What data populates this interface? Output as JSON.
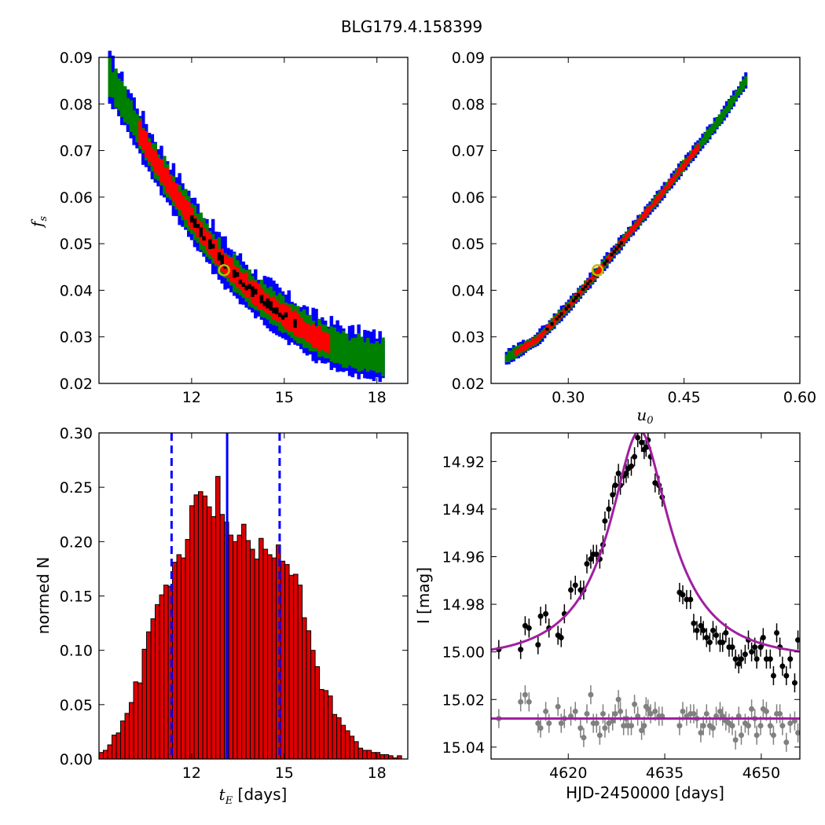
{
  "title": "BLG179.4.158399",
  "colors": {
    "blue": "#0000ff",
    "green": "#008000",
    "red": "#ff0000",
    "black": "#000000",
    "best_fit_marker": "#bfbf00",
    "histogram_bar": "#dd0000",
    "model_curve": "#a020a0",
    "baseline_points": "#808080"
  },
  "chart_data": [
    {
      "id": "panel-tE-fs",
      "type": "heatmap",
      "xlabel": "",
      "ylabel": "f_s",
      "xlim": [
        9,
        19
      ],
      "ylim": [
        0.02,
        0.09
      ],
      "xticks": [
        "12",
        "15",
        "18"
      ],
      "xtick_values": [
        12,
        15,
        18
      ],
      "yticks": [
        "0.02",
        "0.03",
        "0.04",
        "0.05",
        "0.06",
        "0.07",
        "0.08",
        "0.09"
      ],
      "ytick_values": [
        0.02,
        0.03,
        0.04,
        0.05,
        0.06,
        0.07,
        0.08,
        0.09
      ],
      "levels": [
        "blue",
        "green",
        "red",
        "black"
      ],
      "ridge": [
        [
          9.35,
          0.0855
        ],
        [
          10.0,
          0.078
        ],
        [
          10.7,
          0.069
        ],
        [
          11.5,
          0.0605
        ],
        [
          12.3,
          0.0525
        ],
        [
          13.1,
          0.0455
        ],
        [
          14.0,
          0.0395
        ],
        [
          15.0,
          0.0345
        ],
        [
          16.0,
          0.03
        ],
        [
          17.0,
          0.027
        ],
        [
          18.2,
          0.0255
        ]
      ],
      "widths": {
        "blue": 0.0048,
        "green": 0.0034,
        "red": 0.0022,
        "black": 0.0009
      },
      "red_range": [
        10.3,
        16.5
      ],
      "black_range": [
        12.0,
        15.5
      ],
      "best_fit": [
        13.05,
        0.0443
      ]
    },
    {
      "id": "panel-u0-fs",
      "type": "heatmap",
      "xlabel": "u_0",
      "ylabel": "",
      "xlim": [
        0.2,
        0.6
      ],
      "ylim": [
        0.02,
        0.09
      ],
      "xticks": [
        "0.30",
        "0.45",
        "0.60"
      ],
      "xtick_values": [
        0.3,
        0.45,
        0.6
      ],
      "yticks": [
        "0.02",
        "0.03",
        "0.04",
        "0.05",
        "0.06",
        "0.07",
        "0.08",
        "0.09"
      ],
      "ytick_values": [
        0.02,
        0.03,
        0.04,
        0.05,
        0.06,
        0.07,
        0.08,
        0.09
      ],
      "levels": [
        "blue",
        "green",
        "red",
        "black"
      ],
      "ridge": [
        [
          0.22,
          0.0255
        ],
        [
          0.26,
          0.0295
        ],
        [
          0.3,
          0.0365
        ],
        [
          0.34,
          0.0443
        ],
        [
          0.38,
          0.0525
        ],
        [
          0.42,
          0.0605
        ],
        [
          0.46,
          0.069
        ],
        [
          0.5,
          0.0775
        ],
        [
          0.53,
          0.085
        ]
      ],
      "widths": {
        "blue": 0.0014,
        "green": 0.001,
        "red": 0.0006,
        "black": 0.0003
      },
      "red_range": [
        0.23,
        0.47
      ],
      "black_range": [
        0.27,
        0.37
      ],
      "best_fit": [
        0.338,
        0.0443
      ]
    },
    {
      "id": "panel-histogram",
      "type": "bar",
      "xlabel_math": "t_E",
      "xlabel_unit": "[days]",
      "ylabel": "normed N",
      "xlim": [
        9,
        19
      ],
      "ylim": [
        0,
        0.3
      ],
      "bin_start": 9.0,
      "bin_width": 0.14,
      "xticks": [
        "12",
        "15",
        "18"
      ],
      "xtick_values": [
        12,
        15,
        18
      ],
      "yticks": [
        "0.00",
        "0.05",
        "0.10",
        "0.15",
        "0.20",
        "0.25",
        "0.30"
      ],
      "ytick_values": [
        0.0,
        0.05,
        0.1,
        0.15,
        0.2,
        0.25,
        0.3
      ],
      "values": [
        0.006,
        0.008,
        0.013,
        0.022,
        0.024,
        0.035,
        0.042,
        0.052,
        0.071,
        0.07,
        0.101,
        0.117,
        0.129,
        0.142,
        0.151,
        0.16,
        0.159,
        0.181,
        0.188,
        0.185,
        0.202,
        0.233,
        0.243,
        0.246,
        0.242,
        0.232,
        0.223,
        0.26,
        0.225,
        0.218,
        0.206,
        0.2,
        0.206,
        0.216,
        0.201,
        0.193,
        0.184,
        0.203,
        0.193,
        0.188,
        0.185,
        0.197,
        0.182,
        0.179,
        0.169,
        0.17,
        0.16,
        0.13,
        0.118,
        0.1,
        0.085,
        0.064,
        0.063,
        0.058,
        0.041,
        0.038,
        0.031,
        0.026,
        0.021,
        0.016,
        0.01,
        0.008,
        0.008,
        0.006,
        0.006,
        0.004,
        0.004,
        0.003,
        0.001,
        0.003
      ],
      "median": 13.15,
      "interval": [
        11.35,
        14.85
      ]
    },
    {
      "id": "panel-lightcurve",
      "type": "scatter",
      "xlabel": "HJD-2450000 [days]",
      "ylabel": "I [mag]",
      "xlim": [
        4608,
        4656
      ],
      "ylim": [
        15.045,
        14.908
      ],
      "xticks": [
        "4620",
        "4635",
        "4650"
      ],
      "xtick_values": [
        4620,
        4635,
        4650
      ],
      "yticks": [
        "14.92",
        "14.94",
        "14.96",
        "14.98",
        "15.00",
        "15.02",
        "15.04"
      ],
      "ytick_values": [
        14.92,
        14.94,
        14.96,
        14.98,
        15.0,
        15.02,
        15.04
      ],
      "model": {
        "type": "paczynski",
        "t0": 4631.1,
        "tE": 13.05,
        "u0": 0.338,
        "fs": 0.0443,
        "baseline": 15.003
      },
      "residual_baseline": 15.028,
      "points": [
        [
          4609.2,
          14.999,
          0.004
        ],
        [
          4612.6,
          14.999,
          0.004
        ],
        [
          4613.3,
          14.989,
          0.004
        ],
        [
          4613.9,
          14.99,
          0.004
        ],
        [
          4615.3,
          14.997,
          0.004
        ],
        [
          4615.7,
          14.985,
          0.004
        ],
        [
          4616.5,
          14.984,
          0.004
        ],
        [
          4617.0,
          14.99,
          0.004
        ],
        [
          4618.4,
          14.993,
          0.004
        ],
        [
          4618.9,
          14.994,
          0.004
        ],
        [
          4619.4,
          14.984,
          0.004
        ],
        [
          4620.4,
          14.974,
          0.004
        ],
        [
          4621.1,
          14.972,
          0.004
        ],
        [
          4621.9,
          14.974,
          0.004
        ],
        [
          4622.4,
          14.974,
          0.004
        ],
        [
          4622.9,
          14.963,
          0.004
        ],
        [
          4623.5,
          14.961,
          0.004
        ],
        [
          4623.9,
          14.959,
          0.004
        ],
        [
          4624.4,
          14.959,
          0.004
        ],
        [
          4624.9,
          14.961,
          0.004
        ],
        [
          4625.4,
          14.955,
          0.004
        ],
        [
          4625.7,
          14.945,
          0.004
        ],
        [
          4626.3,
          14.94,
          0.004
        ],
        [
          4626.9,
          14.934,
          0.004
        ],
        [
          4627.3,
          14.93,
          0.004
        ],
        [
          4627.8,
          14.925,
          0.004
        ],
        [
          4628.1,
          14.93,
          0.004
        ],
        [
          4628.6,
          14.926,
          0.004
        ],
        [
          4629.0,
          14.925,
          0.004
        ],
        [
          4629.3,
          14.923,
          0.004
        ],
        [
          4629.8,
          14.922,
          0.004
        ],
        [
          4630.3,
          14.918,
          0.004
        ],
        [
          4630.8,
          14.91,
          0.004
        ],
        [
          4631.4,
          14.912,
          0.004
        ],
        [
          4631.8,
          14.915,
          0.004
        ],
        [
          4632.1,
          14.914,
          0.004
        ],
        [
          4632.4,
          14.911,
          0.004
        ],
        [
          4632.8,
          14.918,
          0.004
        ],
        [
          4633.5,
          14.929,
          0.004
        ],
        [
          4634.1,
          14.93,
          0.004
        ],
        [
          4634.6,
          14.935,
          0.004
        ],
        [
          4637.3,
          14.975,
          0.004
        ],
        [
          4637.8,
          14.976,
          0.004
        ],
        [
          4638.4,
          14.978,
          0.004
        ],
        [
          4639.0,
          14.978,
          0.004
        ],
        [
          4639.5,
          14.988,
          0.004
        ],
        [
          4640.0,
          14.991,
          0.004
        ],
        [
          4640.6,
          14.989,
          0.004
        ],
        [
          4641.0,
          14.991,
          0.004
        ],
        [
          4641.5,
          14.994,
          0.004
        ],
        [
          4642.0,
          14.996,
          0.004
        ],
        [
          4642.5,
          14.991,
          0.004
        ],
        [
          4643.0,
          14.993,
          0.004
        ],
        [
          4643.6,
          14.996,
          0.004
        ],
        [
          4644.0,
          14.996,
          0.004
        ],
        [
          4644.5,
          14.992,
          0.004
        ],
        [
          4645.0,
          14.998,
          0.004
        ],
        [
          4645.5,
          14.998,
          0.004
        ],
        [
          4646.0,
          15.003,
          0.004
        ],
        [
          4646.5,
          15.005,
          0.004
        ],
        [
          4646.9,
          15.003,
          0.004
        ],
        [
          4647.5,
          15.001,
          0.004
        ],
        [
          4648.0,
          14.995,
          0.004
        ],
        [
          4648.5,
          15.0,
          0.004
        ],
        [
          4649.0,
          14.998,
          0.004
        ],
        [
          4649.3,
          15.003,
          0.004
        ],
        [
          4649.9,
          14.998,
          0.004
        ],
        [
          4650.3,
          14.994,
          0.004
        ],
        [
          4650.8,
          15.003,
          0.004
        ],
        [
          4651.4,
          15.003,
          0.004
        ],
        [
          4651.9,
          15.01,
          0.004
        ],
        [
          4652.4,
          14.992,
          0.004
        ],
        [
          4652.9,
          14.998,
          0.004
        ],
        [
          4653.3,
          15.006,
          0.004
        ],
        [
          4653.9,
          15.01,
          0.004
        ],
        [
          4654.5,
          15.003,
          0.004
        ],
        [
          4655.2,
          15.013,
          0.004
        ],
        [
          4655.7,
          14.995,
          0.004
        ]
      ],
      "residual_points": [
        [
          4609.2,
          15.028,
          0.004
        ],
        [
          4612.6,
          15.021,
          0.004
        ],
        [
          4613.3,
          15.018,
          0.004
        ],
        [
          4613.9,
          15.021,
          0.004
        ],
        [
          4615.3,
          15.03,
          0.004
        ],
        [
          4615.7,
          15.032,
          0.004
        ],
        [
          4616.5,
          15.025,
          0.004
        ],
        [
          4617.0,
          15.03,
          0.004
        ],
        [
          4618.4,
          15.023,
          0.004
        ],
        [
          4618.9,
          15.03,
          0.004
        ],
        [
          4619.4,
          15.028,
          0.004
        ],
        [
          4620.4,
          15.027,
          0.004
        ],
        [
          4621.1,
          15.025,
          0.004
        ],
        [
          4621.9,
          15.032,
          0.004
        ],
        [
          4622.4,
          15.036,
          0.004
        ],
        [
          4622.9,
          15.026,
          0.004
        ],
        [
          4623.5,
          15.018,
          0.004
        ],
        [
          4623.9,
          15.03,
          0.004
        ],
        [
          4624.4,
          15.03,
          0.004
        ],
        [
          4624.9,
          15.035,
          0.004
        ],
        [
          4625.4,
          15.026,
          0.004
        ],
        [
          4625.7,
          15.032,
          0.004
        ],
        [
          4626.3,
          15.03,
          0.004
        ],
        [
          4626.9,
          15.029,
          0.004
        ],
        [
          4627.3,
          15.026,
          0.004
        ],
        [
          4627.8,
          15.02,
          0.004
        ],
        [
          4628.1,
          15.025,
          0.004
        ],
        [
          4628.6,
          15.031,
          0.004
        ],
        [
          4629.0,
          15.028,
          0.004
        ],
        [
          4629.3,
          15.031,
          0.004
        ],
        [
          4629.8,
          15.031,
          0.004
        ],
        [
          4630.3,
          15.022,
          0.004
        ],
        [
          4630.8,
          15.027,
          0.004
        ],
        [
          4631.4,
          15.033,
          0.004
        ],
        [
          4631.8,
          15.031,
          0.004
        ],
        [
          4632.1,
          15.023,
          0.004
        ],
        [
          4632.4,
          15.024,
          0.004
        ],
        [
          4632.8,
          15.026,
          0.004
        ],
        [
          4633.5,
          15.025,
          0.004
        ],
        [
          4634.1,
          15.027,
          0.004
        ],
        [
          4634.6,
          15.027,
          0.004
        ],
        [
          4637.3,
          15.031,
          0.004
        ],
        [
          4637.8,
          15.025,
          0.004
        ],
        [
          4638.4,
          15.027,
          0.004
        ],
        [
          4639.0,
          15.026,
          0.004
        ],
        [
          4639.5,
          15.026,
          0.004
        ],
        [
          4640.0,
          15.028,
          0.004
        ],
        [
          4640.6,
          15.034,
          0.004
        ],
        [
          4641.0,
          15.031,
          0.004
        ],
        [
          4641.5,
          15.026,
          0.004
        ],
        [
          4642.0,
          15.031,
          0.004
        ],
        [
          4642.5,
          15.032,
          0.004
        ],
        [
          4643.0,
          15.027,
          0.004
        ],
        [
          4643.6,
          15.025,
          0.004
        ],
        [
          4644.0,
          15.027,
          0.004
        ],
        [
          4644.5,
          15.029,
          0.004
        ],
        [
          4645.0,
          15.03,
          0.004
        ],
        [
          4645.5,
          15.031,
          0.004
        ],
        [
          4646.0,
          15.037,
          0.004
        ],
        [
          4646.5,
          15.027,
          0.004
        ],
        [
          4646.9,
          15.035,
          0.004
        ],
        [
          4647.5,
          15.03,
          0.004
        ],
        [
          4648.0,
          15.031,
          0.004
        ],
        [
          4648.5,
          15.024,
          0.004
        ],
        [
          4649.0,
          15.028,
          0.004
        ],
        [
          4649.3,
          15.035,
          0.004
        ],
        [
          4649.9,
          15.031,
          0.004
        ],
        [
          4650.3,
          15.024,
          0.004
        ],
        [
          4650.8,
          15.025,
          0.004
        ],
        [
          4651.4,
          15.031,
          0.004
        ],
        [
          4651.9,
          15.035,
          0.004
        ],
        [
          4652.4,
          15.026,
          0.004
        ],
        [
          4652.9,
          15.026,
          0.004
        ],
        [
          4653.3,
          15.031,
          0.004
        ],
        [
          4653.9,
          15.038,
          0.004
        ],
        [
          4654.5,
          15.03,
          0.004
        ],
        [
          4655.2,
          15.029,
          0.004
        ],
        [
          4655.7,
          15.034,
          0.004
        ]
      ]
    }
  ]
}
